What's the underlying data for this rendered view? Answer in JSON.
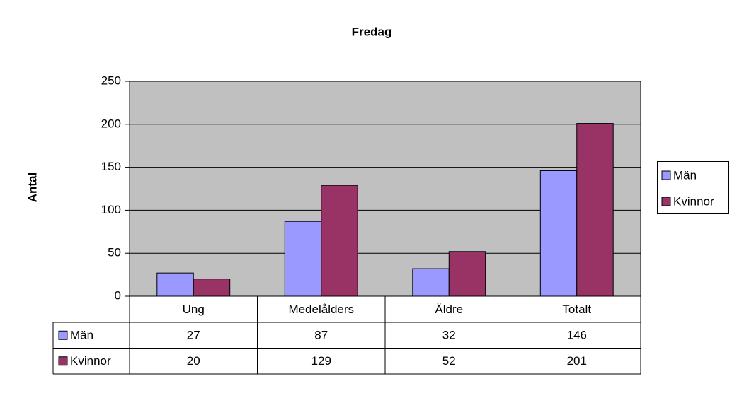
{
  "chart_data": {
    "type": "bar",
    "title": "Fredag",
    "y_label": "Antal",
    "categories": [
      "Ung",
      "Medelålders",
      "Äldre",
      "Totalt"
    ],
    "series": [
      {
        "name": "Män",
        "color": "#9999ff",
        "values": [
          27,
          87,
          32,
          146
        ]
      },
      {
        "name": "Kvinnor",
        "color": "#993366",
        "values": [
          20,
          129,
          52,
          201
        ]
      }
    ],
    "ylim": [
      0,
      250
    ],
    "yticks": [
      0,
      50,
      100,
      150,
      200,
      250
    ],
    "grid": true,
    "legend": "right",
    "data_table": true
  }
}
